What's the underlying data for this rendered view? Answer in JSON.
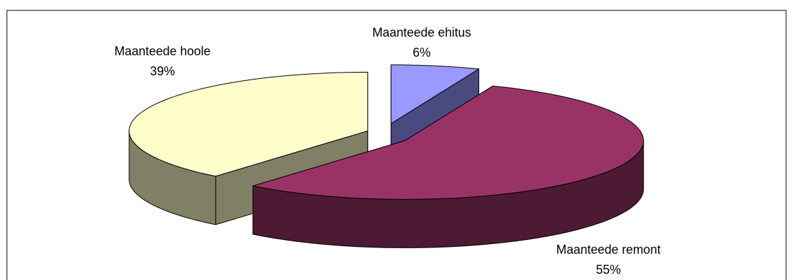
{
  "chart_data": {
    "type": "pie3d",
    "categories": [
      "Maanteede ehitus",
      "Maanteede remont",
      "Maanteede hoole"
    ],
    "values": [
      6,
      55,
      39
    ],
    "value_labels": [
      "6%",
      "55%",
      "39%"
    ],
    "colors": [
      "#9999ff",
      "#993366",
      "#ffffcc"
    ],
    "side_colors": [
      "#4a4a80",
      "#4d1a33",
      "#808066"
    ]
  }
}
